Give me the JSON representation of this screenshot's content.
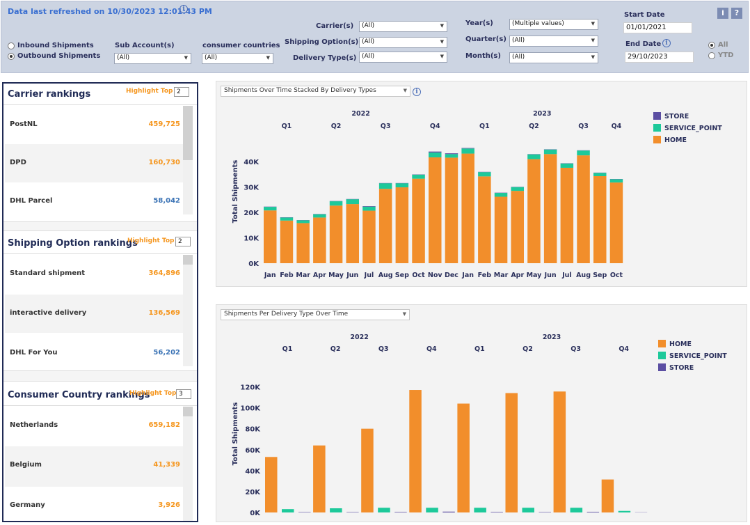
{
  "header": {
    "refresh_text": "Data last refreshed on 10/30/2023 12:01:43 PM",
    "shipment_direction": [
      {
        "label": "Inbound Shipments",
        "selected": false
      },
      {
        "label": "Outbound Shipments",
        "selected": true
      }
    ],
    "sub_account": {
      "label": "Sub Account(s)",
      "value": "(All)"
    },
    "consumer_countries": {
      "label": "consumer countries",
      "value": "(All)"
    },
    "carriers": {
      "label": "Carrier(s)",
      "value": "(All)"
    },
    "shipping_option": {
      "label": "Shipping Option(s)",
      "value": "(All)"
    },
    "delivery_type": {
      "label": "Delivery Type(s)",
      "value": "(All)"
    },
    "years": {
      "label": "Year(s)",
      "value": "(Multiple values)"
    },
    "quarters": {
      "label": "Quarter(s)",
      "value": "(All)"
    },
    "months": {
      "label": "Month(s)",
      "value": "(All)"
    },
    "start_date": {
      "label": "Start Date",
      "value": "01/01/2021"
    },
    "end_date": {
      "label": "End Date",
      "value": "29/10/2023"
    },
    "period": [
      {
        "label": "All",
        "selected": true
      },
      {
        "label": "YTD",
        "selected": false
      }
    ],
    "info_button": "i",
    "help_button": "?",
    "info_icon_glyph": "i"
  },
  "rankings": [
    {
      "title": "Carrier rankings",
      "highlight_label": "Highlight Top",
      "highlight_value": "2",
      "rows": [
        {
          "name": "PostNL",
          "value": "459,725",
          "highlight": true
        },
        {
          "name": "DPD",
          "value": "160,730",
          "highlight": true
        },
        {
          "name": "DHL Parcel",
          "value": "58,042",
          "highlight": false
        }
      ]
    },
    {
      "title": "Shipping Option  rankings",
      "highlight_label": "Highlight Top",
      "highlight_value": "2",
      "rows": [
        {
          "name": "Standard shipment",
          "value": "364,896",
          "highlight": true
        },
        {
          "name": "interactive delivery",
          "value": "136,569",
          "highlight": true
        },
        {
          "name": "DHL For You",
          "value": "56,202",
          "highlight": false
        }
      ]
    },
    {
      "title": "Consumer Country rankings",
      "highlight_label": "Highlight Top",
      "highlight_value": "3",
      "rows": [
        {
          "name": "Netherlands",
          "value": "659,182",
          "highlight": true
        },
        {
          "name": "Belgium",
          "value": "41,339",
          "highlight": true
        },
        {
          "name": "Germany",
          "value": "3,926",
          "highlight": true
        }
      ]
    }
  ],
  "colors": {
    "home": "#f28e2b",
    "service_point": "#1dc99a",
    "store": "#5b4ea2",
    "highlight": "#f5961e",
    "normal": "#3b73b5"
  },
  "chart_data": [
    {
      "type": "bar",
      "stacked": true,
      "dropdown": "Shipments Over Time Stacked By Delivery Types",
      "ylabel": "Total Shipments",
      "ylim": [
        0,
        45000
      ],
      "yticks": [
        "0K",
        "10K",
        "20K",
        "30K",
        "40K"
      ],
      "year_labels": [
        {
          "label": "2022",
          "start": 0,
          "end": 11
        },
        {
          "label": "2023",
          "start": 12,
          "end": 21
        }
      ],
      "quarter_labels": [
        {
          "label": "Q1",
          "start": 0,
          "end": 2
        },
        {
          "label": "Q2",
          "start": 3,
          "end": 5
        },
        {
          "label": "Q3",
          "start": 6,
          "end": 8
        },
        {
          "label": "Q4",
          "start": 9,
          "end": 11
        },
        {
          "label": "Q1",
          "start": 12,
          "end": 14
        },
        {
          "label": "Q2",
          "start": 15,
          "end": 17
        },
        {
          "label": "Q3",
          "start": 18,
          "end": 20
        },
        {
          "label": "Q4",
          "start": 21,
          "end": 21
        }
      ],
      "categories": [
        "Jan",
        "Feb",
        "Mar",
        "Apr",
        "May",
        "Jun",
        "Jul",
        "Aug",
        "Sep",
        "Oct",
        "Nov",
        "Dec",
        "Jan",
        "Feb",
        "Mar",
        "Apr",
        "May",
        "Jun",
        "Jul",
        "Aug",
        "Sep",
        "Oct"
      ],
      "series": [
        {
          "name": "HOME",
          "values": [
            20800,
            16800,
            15800,
            18000,
            22700,
            23300,
            20700,
            29300,
            29900,
            33300,
            41700,
            41600,
            43200,
            34200,
            26200,
            28500,
            41000,
            43000,
            37600,
            42500,
            34300,
            31800
          ]
        },
        {
          "name": "SERVICE_POINT",
          "values": [
            1400,
            1200,
            1100,
            1300,
            1700,
            1900,
            1600,
            2200,
            1600,
            1600,
            1900,
            1400,
            2000,
            1700,
            1500,
            1500,
            1900,
            1800,
            1700,
            1900,
            1300,
            1300
          ]
        },
        {
          "name": "STORE",
          "values": [
            100,
            100,
            100,
            100,
            100,
            100,
            200,
            100,
            100,
            100,
            400,
            300,
            200,
            100,
            100,
            100,
            100,
            100,
            100,
            100,
            100,
            100
          ]
        }
      ],
      "legend": [
        "STORE",
        "SERVICE_POINT",
        "HOME"
      ],
      "legend_position": "top-right"
    },
    {
      "type": "bar",
      "grouped": true,
      "dropdown": "Shipments Per Delivery Type Over Time",
      "ylabel": "Total Shipments",
      "ylim": [
        0,
        125000
      ],
      "yticks": [
        "0K",
        "20K",
        "40K",
        "60K",
        "80K",
        "100K",
        "120K"
      ],
      "year_labels": [
        {
          "label": "2022",
          "start": 0,
          "end": 3
        },
        {
          "label": "2023",
          "start": 4,
          "end": 7
        }
      ],
      "categories": [
        "Q1",
        "Q2",
        "Q3",
        "Q4",
        "Q1",
        "Q2",
        "Q3",
        "Q4"
      ],
      "series": [
        {
          "name": "HOME",
          "values": [
            53000,
            64000,
            80000,
            117000,
            104000,
            114000,
            115500,
            31500
          ]
        },
        {
          "name": "SERVICE_POINT",
          "values": [
            3200,
            4000,
            4500,
            4500,
            4500,
            4500,
            4500,
            1500
          ]
        },
        {
          "name": "STORE",
          "values": [
            400,
            400,
            500,
            800,
            500,
            400,
            600,
            200
          ]
        }
      ],
      "legend": [
        "HOME",
        "SERVICE_POINT",
        "STORE"
      ],
      "legend_position": "top-right"
    }
  ]
}
